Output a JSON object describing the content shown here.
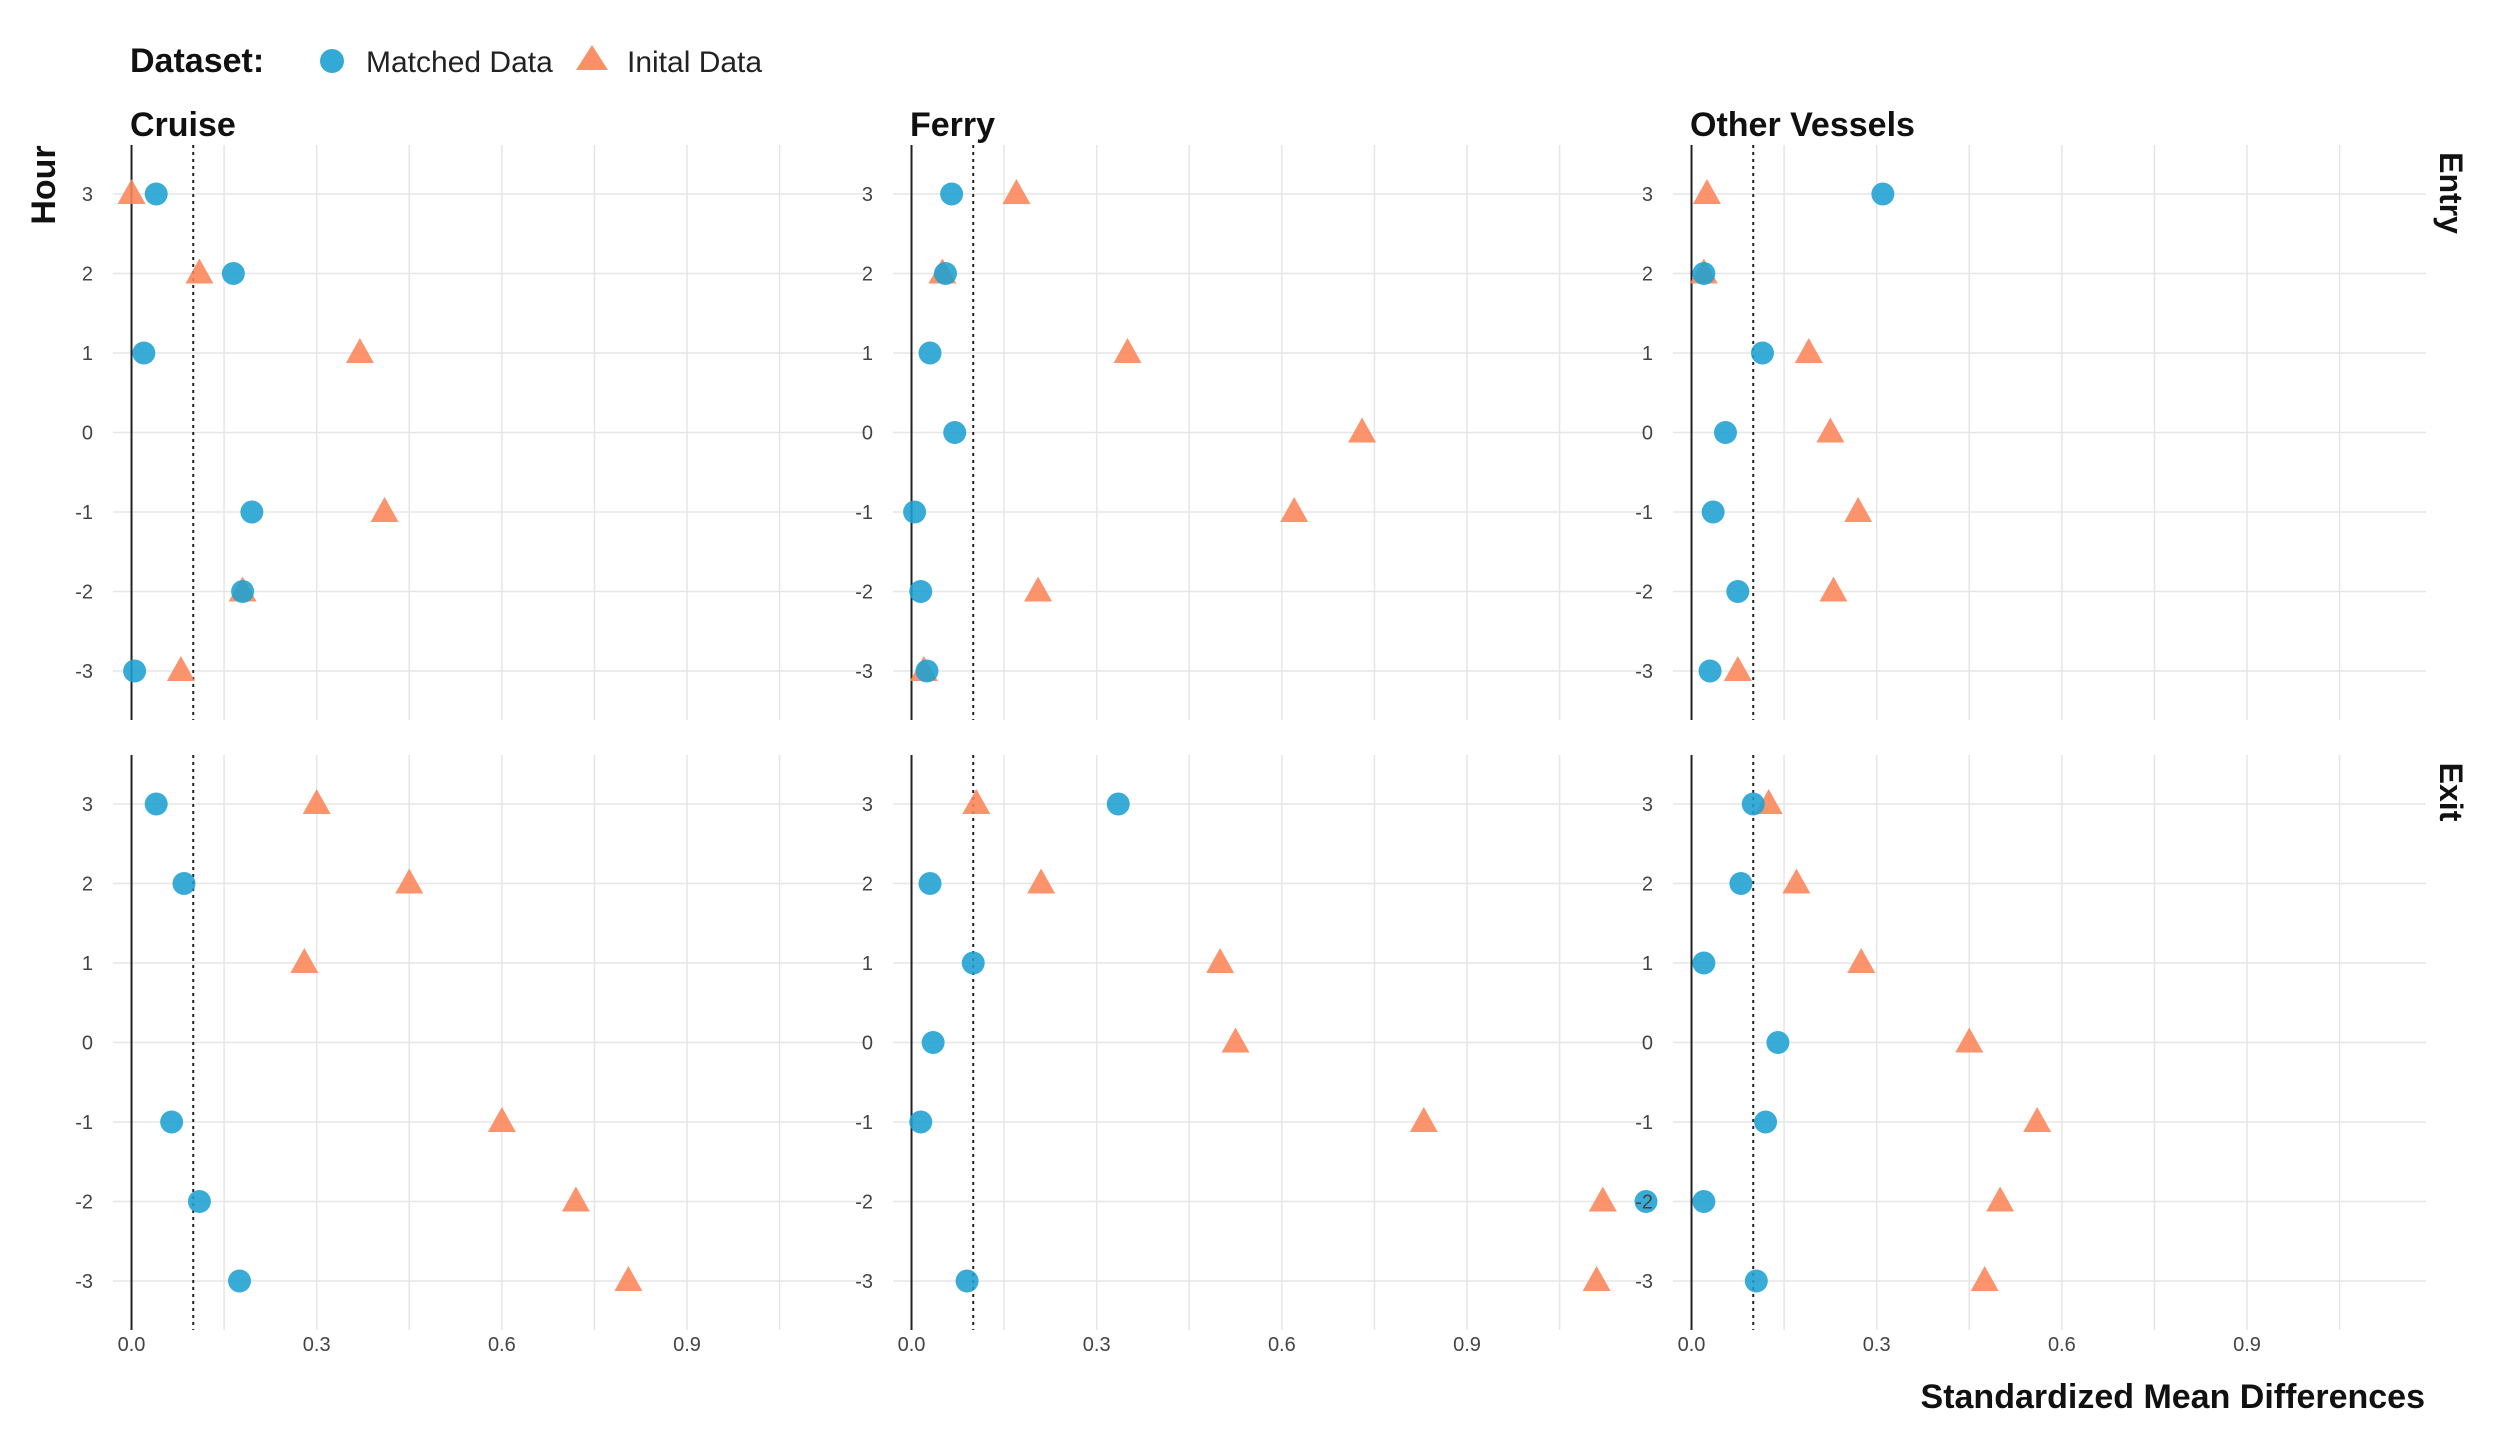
{
  "chart_data": {
    "type": "scatter",
    "legend": {
      "title": "Dataset:",
      "position": "top-left",
      "entries": [
        {
          "label": "Matched Data",
          "shape": "circle",
          "color": "#1DA1D2"
        },
        {
          "label": "Inital Data",
          "shape": "triangle",
          "color": "#FA8459"
        }
      ]
    },
    "xlabel": "Standardized Mean Differences",
    "ylabel": "Hour",
    "xlim": [
      -0.03,
      1.19
    ],
    "x_ticks": [
      "0.0",
      "0.3",
      "0.6",
      "0.9"
    ],
    "x_tick_values": [
      0,
      0.3,
      0.6,
      0.9
    ],
    "y_categories": [
      "3",
      "2",
      "1",
      "0",
      "-1",
      "-2",
      "-3"
    ],
    "reference_lines": {
      "solid": 0,
      "dotted": 0.1
    },
    "grid": true,
    "columns": [
      "Cruise",
      "Ferry",
      "Other Vessels"
    ],
    "rows": [
      "Entry",
      "Exit"
    ],
    "panels": [
      {
        "column": "Cruise",
        "row": "Entry",
        "series": [
          {
            "name": "Matched Data",
            "values": [
              0.04,
              0.165,
              0.02,
              null,
              0.195,
              0.18,
              0.005
            ]
          },
          {
            "name": "Inital Data",
            "values": [
              0.0,
              0.11,
              0.37,
              null,
              0.41,
              0.18,
              0.08
            ]
          }
        ]
      },
      {
        "column": "Ferry",
        "row": "Entry",
        "series": [
          {
            "name": "Matched Data",
            "values": [
              0.065,
              0.055,
              0.03,
              0.07,
              0.005,
              0.015,
              0.025
            ]
          },
          {
            "name": "Inital Data",
            "values": [
              0.17,
              0.05,
              0.35,
              0.73,
              0.62,
              0.205,
              0.02
            ]
          }
        ]
      },
      {
        "column": "Other Vessels",
        "row": "Entry",
        "series": [
          {
            "name": "Matched Data",
            "values": [
              0.31,
              0.02,
              0.115,
              0.055,
              0.035,
              0.075,
              0.03
            ]
          },
          {
            "name": "Inital Data",
            "values": [
              0.025,
              0.02,
              0.19,
              0.225,
              0.27,
              0.23,
              0.075
            ]
          }
        ]
      },
      {
        "column": "Cruise",
        "row": "Exit",
        "series": [
          {
            "name": "Matched Data",
            "values": [
              0.04,
              0.085,
              null,
              null,
              0.065,
              0.11,
              0.175
            ]
          },
          {
            "name": "Inital Data",
            "values": [
              0.3,
              0.45,
              0.28,
              null,
              0.6,
              0.72,
              0.805
            ]
          }
        ]
      },
      {
        "column": "Ferry",
        "row": "Exit",
        "series": [
          {
            "name": "Matched Data",
            "values": [
              0.335,
              0.03,
              0.1,
              0.035,
              0.015,
              1.19,
              0.09
            ]
          },
          {
            "name": "Inital Data",
            "values": [
              0.105,
              0.21,
              0.5,
              0.525,
              0.83,
              1.12,
              1.11
            ]
          }
        ]
      },
      {
        "column": "Other Vessels",
        "row": "Exit",
        "series": [
          {
            "name": "Matched Data",
            "values": [
              0.1,
              0.08,
              0.02,
              0.14,
              0.12,
              0.02,
              0.105
            ]
          },
          {
            "name": "Inital Data",
            "values": [
              0.125,
              0.17,
              0.275,
              0.45,
              0.56,
              0.5,
              0.475
            ]
          }
        ]
      }
    ]
  }
}
